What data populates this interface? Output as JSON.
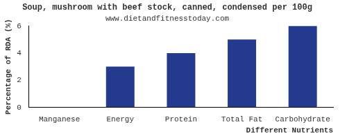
{
  "chart_data": {
    "type": "bar",
    "title": "Soup, mushroom with beef stock, canned, condensed per 100g",
    "subtitle": "www.dietandfitnesstoday.com",
    "x_label": "Different Nutrients",
    "y_label": "Percentage of RDA (%)",
    "categories": [
      "Manganese",
      "Energy",
      "Protein",
      "Total Fat",
      "Carbohydrate"
    ],
    "values": [
      0,
      3,
      4,
      5,
      6
    ],
    "color": "#233a8e",
    "ylim": [
      0,
      6
    ],
    "yticks": [
      0,
      2,
      4,
      6
    ],
    "grid": false
  }
}
